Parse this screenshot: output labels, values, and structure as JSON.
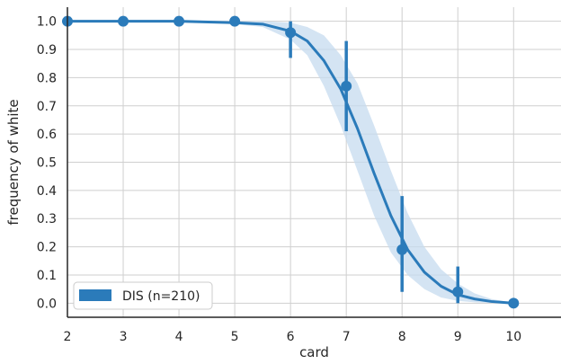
{
  "chart_data": {
    "type": "line",
    "xlabel": "card",
    "ylabel": "frequency of white",
    "xlim": [
      2,
      10.85
    ],
    "ylim": [
      -0.05,
      1.05
    ],
    "x_ticks": [
      "2",
      "3",
      "4",
      "5",
      "6",
      "7",
      "8",
      "9",
      "10"
    ],
    "y_ticks": [
      "0.0",
      "0.1",
      "0.2",
      "0.3",
      "0.4",
      "0.5",
      "0.6",
      "0.7",
      "0.8",
      "0.9",
      "1.0"
    ],
    "grid": true,
    "legend_position": "lower-left",
    "series": [
      {
        "name": "DIS (n=210)",
        "color": "#2b7bba",
        "band_color": "#c6dbef",
        "points": [
          {
            "x": 2,
            "y": 1.0
          },
          {
            "x": 3,
            "y": 1.0
          },
          {
            "x": 4,
            "y": 1.0
          },
          {
            "x": 5,
            "y": 1.0
          },
          {
            "x": 6,
            "y": 0.96,
            "err_low": 0.87,
            "err_high": 1.0
          },
          {
            "x": 7,
            "y": 0.77,
            "err_low": 0.61,
            "err_high": 0.93
          },
          {
            "x": 8,
            "y": 0.19,
            "err_low": 0.04,
            "err_high": 0.38
          },
          {
            "x": 9,
            "y": 0.04,
            "err_low": 0.0,
            "err_high": 0.13
          },
          {
            "x": 10,
            "y": 0.0
          }
        ],
        "fit_curve": {
          "x": [
            2,
            4,
            5,
            5.5,
            6,
            6.3,
            6.6,
            6.9,
            7.2,
            7.5,
            7.8,
            8.1,
            8.4,
            8.7,
            9.0,
            9.3,
            9.6,
            10
          ],
          "y": [
            1.0,
            1.0,
            0.995,
            0.99,
            0.965,
            0.93,
            0.86,
            0.76,
            0.62,
            0.46,
            0.31,
            0.19,
            0.11,
            0.06,
            0.03,
            0.015,
            0.006,
            0.0
          ]
        },
        "band_upper": [
          1.0,
          1.0,
          1.0,
          1.0,
          0.995,
          0.98,
          0.95,
          0.88,
          0.78,
          0.63,
          0.47,
          0.32,
          0.2,
          0.12,
          0.07,
          0.035,
          0.015,
          0.002
        ],
        "band_lower": [
          1.0,
          1.0,
          0.99,
          0.98,
          0.935,
          0.88,
          0.77,
          0.63,
          0.47,
          0.31,
          0.18,
          0.1,
          0.05,
          0.02,
          0.008,
          0.003,
          0.001,
          0.0
        ]
      }
    ]
  }
}
